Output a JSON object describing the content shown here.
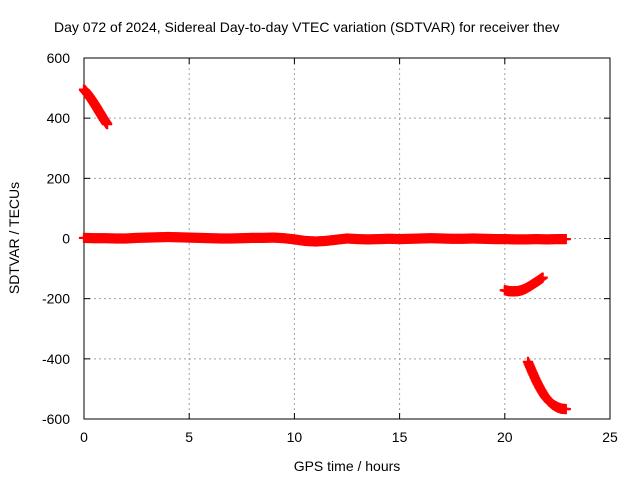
{
  "chart_data": {
    "type": "scatter",
    "title": "Day 072 of 2024, Sidereal Day-to-day VTEC variation (SDTVAR) for receiver thev",
    "xlabel": "GPS time / hours",
    "ylabel": "SDTVAR / TECUs",
    "xlim": [
      0,
      25
    ],
    "ylim": [
      -600,
      600
    ],
    "xticks": [
      0,
      5,
      10,
      15,
      20,
      25
    ],
    "yticks": [
      -600,
      -400,
      -200,
      0,
      200,
      400,
      600
    ],
    "grid": true,
    "marker": "plus",
    "color": "#ff0000",
    "series": [
      {
        "segments": [
          {
            "x": [
              0.0,
              0.1,
              0.2,
              0.3,
              0.4,
              0.5,
              0.6,
              0.7,
              0.8,
              0.9,
              1.0,
              1.1
            ],
            "y": [
              495,
              487,
              478,
              468,
              458,
              447,
              436,
              424,
              413,
              401,
              390,
              380
            ]
          },
          {
            "x": [
              0.0,
              0.5,
              1.0,
              1.5,
              2.0,
              2.5,
              3.0,
              3.5,
              4.0,
              4.5,
              5.0,
              5.5,
              6.0,
              6.5,
              7.0,
              7.5,
              8.0,
              8.5,
              9.0,
              9.5,
              10.0,
              10.5,
              11.0,
              11.5,
              12.0,
              12.5,
              13.0,
              13.5,
              14.0,
              14.5,
              15.0,
              15.5,
              16.0,
              16.5,
              17.0,
              17.5,
              18.0,
              18.5,
              19.0,
              19.5,
              20.0,
              20.5,
              21.0,
              21.5,
              22.0,
              22.5,
              22.9
            ],
            "y": [
              2,
              1,
              1,
              0,
              0,
              2,
              3,
              4,
              5,
              4,
              3,
              2,
              1,
              0,
              0,
              1,
              2,
              2,
              3,
              1,
              -3,
              -8,
              -10,
              -8,
              -4,
              0,
              -2,
              -3,
              -2,
              -1,
              -2,
              -1,
              0,
              1,
              0,
              -1,
              -1,
              0,
              -1,
              -2,
              -2,
              -3,
              -3,
              -2,
              -3,
              -2,
              -2
            ]
          },
          {
            "x": [
              20.0,
              20.2,
              20.4,
              20.6,
              20.8,
              21.0,
              21.2,
              21.4,
              21.6,
              21.8
            ],
            "y": [
              -172,
              -175,
              -176,
              -175,
              -172,
              -166,
              -158,
              -149,
              -140,
              -130
            ]
          },
          {
            "x": [
              21.1,
              21.3,
              21.5,
              21.7,
              21.9,
              22.1,
              22.3,
              22.5,
              22.7,
              22.9
            ],
            "y": [
              -410,
              -443,
              -474,
              -501,
              -524,
              -541,
              -553,
              -561,
              -566,
              -567
            ]
          }
        ]
      }
    ]
  }
}
